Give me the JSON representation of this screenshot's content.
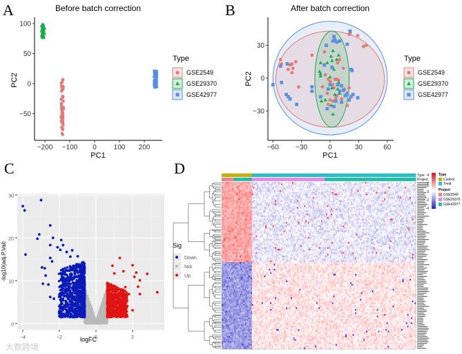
{
  "watermark": "大数跨境",
  "chart_data": [
    {
      "panel": "A",
      "type": "scatter",
      "title": "Before batch correction",
      "xlabel": "PC1",
      "ylabel": "PC2",
      "xlim": [
        -240,
        270
      ],
      "ylim": [
        -90,
        110
      ],
      "xticks": [
        "-200",
        "-100",
        "0",
        "100",
        "200"
      ],
      "yticks": [
        "100",
        "50",
        "0",
        "-50"
      ],
      "legend": {
        "title": "Type",
        "position": "right",
        "entries": [
          "GSE2549",
          "GSE29370",
          "GSE42977"
        ]
      },
      "colors": [
        "#e07b78",
        "#1aaa48",
        "#5b8fe0"
      ],
      "clusters": [
        {
          "series": "GSE2549",
          "x_range": [
            -135,
            -125
          ],
          "y_range": [
            -85,
            7
          ],
          "n": 60
        },
        {
          "series": "GSE29370",
          "x_range": [
            -215,
            -200
          ],
          "y_range": [
            76,
            99
          ],
          "n": 40
        },
        {
          "series": "GSE42977",
          "x_range": [
            240,
            250
          ],
          "y_range": [
            -6,
            21
          ],
          "n": 60
        }
      ]
    },
    {
      "panel": "B",
      "type": "scatter",
      "title": "After batch correction",
      "xlabel": "PC1",
      "ylabel": "PC2",
      "xlim": [
        -66,
        66
      ],
      "ylim": [
        -56,
        56
      ],
      "xticks": [
        "-60",
        "-30",
        "0",
        "30",
        "60"
      ],
      "yticks": [
        "30",
        "0",
        "-30"
      ],
      "legend": {
        "title": "Type",
        "position": "right",
        "entries": [
          "GSE2549",
          "GSE29370",
          "GSE42977"
        ]
      },
      "colors": [
        "#e07b78",
        "#1aaa48",
        "#5b8fe0"
      ],
      "ellipses": [
        {
          "series": "GSE42977",
          "cx": 0,
          "cy": 0,
          "rx": 60,
          "ry": 52
        },
        {
          "series": "GSE2549",
          "cx": 0,
          "cy": -1,
          "rx": 57,
          "ry": 44
        },
        {
          "series": "GSE29370",
          "cx": 2,
          "cy": -1,
          "rx": 18,
          "ry": 44
        }
      ],
      "points": {
        "GSE2549": [
          [
            -52,
            17
          ],
          [
            -51,
            13
          ],
          [
            -42,
            12
          ],
          [
            -40,
            13
          ],
          [
            -36,
            15
          ],
          [
            -44,
            8
          ],
          [
            -39,
            9
          ],
          [
            -40,
            5
          ],
          [
            -33,
            -8
          ],
          [
            -19,
            21
          ],
          [
            -6,
            24
          ],
          [
            -5,
            3
          ],
          [
            -2,
            -1
          ],
          [
            -8,
            -8
          ],
          [
            0,
            -3
          ],
          [
            3,
            -6
          ],
          [
            4,
            -9
          ],
          [
            5,
            -1
          ],
          [
            7,
            -1
          ],
          [
            9,
            -2
          ],
          [
            10,
            17
          ],
          [
            8,
            14
          ],
          [
            -3,
            -14
          ],
          [
            0,
            -20
          ],
          [
            3,
            -21
          ],
          [
            6,
            -18
          ],
          [
            7,
            -16
          ],
          [
            12,
            -19
          ],
          [
            15,
            -10
          ],
          [
            18,
            -25
          ],
          [
            20,
            40
          ],
          [
            21,
            41
          ],
          [
            29,
            39
          ],
          [
            35,
            29
          ],
          [
            38,
            30
          ],
          [
            -2,
            -24
          ],
          [
            14,
            9
          ],
          [
            20,
            -9
          ]
        ],
        "GSE29370": [
          [
            -10,
            14
          ],
          [
            -11,
            6
          ],
          [
            -10,
            4
          ],
          [
            -10,
            2
          ],
          [
            -3,
            14
          ],
          [
            1,
            20
          ],
          [
            2,
            16
          ],
          [
            3,
            25
          ],
          [
            7,
            17
          ],
          [
            9,
            21
          ],
          [
            4,
            8
          ],
          [
            0,
            1
          ],
          [
            2,
            -9
          ],
          [
            5,
            -15
          ],
          [
            9,
            -4
          ],
          [
            8,
            -10
          ],
          [
            10,
            -14
          ],
          [
            -9,
            -21
          ],
          [
            -5,
            -20
          ],
          [
            1,
            -25
          ],
          [
            3,
            -33
          ]
        ],
        "GSE42977": [
          [
            -60,
            -6
          ],
          [
            -52,
            11
          ],
          [
            -51,
            -4
          ],
          [
            -45,
            13
          ],
          [
            -46,
            -15
          ],
          [
            -44,
            -17
          ],
          [
            -42,
            -19
          ],
          [
            -35,
            -24
          ],
          [
            -19,
            -8
          ],
          [
            -19,
            -12
          ],
          [
            -10,
            -17
          ],
          [
            -6,
            12
          ],
          [
            -4,
            30
          ],
          [
            -3,
            -28
          ],
          [
            2,
            10
          ],
          [
            3,
            34
          ],
          [
            4,
            38
          ],
          [
            5,
            35
          ],
          [
            7,
            33
          ],
          [
            10,
            34
          ],
          [
            18,
            31
          ],
          [
            21,
            43
          ],
          [
            22,
            8
          ],
          [
            23,
            7
          ],
          [
            4,
            -26
          ],
          [
            6,
            -21
          ],
          [
            8,
            -6
          ],
          [
            10,
            -12
          ],
          [
            12,
            -7
          ],
          [
            14,
            -11
          ],
          [
            16,
            -16
          ],
          [
            18,
            -14
          ],
          [
            20,
            -20
          ],
          [
            22,
            -17
          ],
          [
            24,
            -15
          ],
          [
            29,
            -18
          ],
          [
            12,
            -22
          ],
          [
            0,
            -6
          ],
          [
            -2,
            -10
          ]
        ]
      }
    },
    {
      "panel": "C",
      "type": "scatter",
      "title": "",
      "xlabel": "logFC",
      "ylabel": "-log10(adj.P.Val)",
      "xlim": [
        -4.2,
        3.7
      ],
      "ylim": [
        -0.3,
        30.8
      ],
      "xticks": [
        "-4",
        "-2",
        "0",
        "2"
      ],
      "yticks": [
        "30",
        "20",
        "10",
        "0"
      ],
      "legend": {
        "title": "Sig",
        "position": "right",
        "entries": [
          "Down",
          "Not",
          "Up"
        ]
      },
      "colors": [
        "#0b1bb8",
        "#b9b9b9",
        "#e01414"
      ],
      "outliers": {
        "Down": [
          [
            -4.0,
            27.4
          ],
          [
            -3.9,
            26.4
          ],
          [
            -3.0,
            28.8
          ],
          [
            -3.85,
            16.1
          ],
          [
            -3.1,
            20.8
          ],
          [
            -3.2,
            19.8
          ],
          [
            -2.5,
            22.9
          ],
          [
            -2.35,
            20.0
          ],
          [
            -2.5,
            18.3
          ],
          [
            -2.1,
            17.8
          ],
          [
            -1.9,
            19.5
          ],
          [
            -1.8,
            18.3
          ],
          [
            -1.95,
            17.2
          ],
          [
            -1.6,
            16.7
          ],
          [
            -1.3,
            17.1
          ],
          [
            -1.4,
            15.6
          ],
          [
            -1.0,
            15.7
          ],
          [
            -2.95,
            13.1
          ],
          [
            -2.8,
            12.9
          ],
          [
            -2.75,
            11.2
          ],
          [
            -2.9,
            9.3
          ],
          [
            -2.6,
            9.1
          ],
          [
            -2.5,
            15.3
          ],
          [
            -2.4,
            14.5
          ],
          [
            -2.5,
            6.2
          ],
          [
            -2.3,
            5.8
          ],
          [
            -2.0,
            4.0
          ],
          [
            -1.9,
            2.7
          ]
        ],
        "Up": [
          [
            1.3,
            15.3
          ],
          [
            2.0,
            13.6
          ],
          [
            0.9,
            13.5
          ],
          [
            1.5,
            12.2
          ],
          [
            2.2,
            11.9
          ],
          [
            2.8,
            11.6
          ],
          [
            2.1,
            10.9
          ],
          [
            2.4,
            10.1
          ],
          [
            2.3,
            8.6
          ],
          [
            3.35,
            7.3
          ],
          [
            2.4,
            6.9
          ],
          [
            1.6,
            8.5
          ],
          [
            1.8,
            6.9
          ],
          [
            2.0,
            3.1
          ],
          [
            1.0,
            11.7
          ]
        ]
      },
      "clouds": [
        {
          "series": "Down",
          "x_range": [
            -2.0,
            -0.6
          ],
          "y_range": [
            1.4,
            13.0
          ],
          "n": 900
        },
        {
          "series": "Up",
          "x_range": [
            0.6,
            1.7
          ],
          "y_range": [
            1.4,
            9.5
          ],
          "n": 650
        },
        {
          "series": "Not",
          "x_range": [
            -0.6,
            0.6
          ],
          "y_range": [
            0,
            8.5
          ],
          "n": 1200
        }
      ]
    },
    {
      "panel": "D",
      "type": "heatmap",
      "title": "",
      "annotations": [
        {
          "name": "Type",
          "entries": [
            {
              "label": "Control",
              "color": "#c8b100"
            },
            {
              "label": "Treat",
              "color": "#27c0c8"
            }
          ]
        },
        {
          "name": "Project",
          "entries": [
            {
              "label": "GSE2549",
              "color": "#f08080"
            },
            {
              "label": "GSE29370",
              "color": "#e08ce8"
            },
            {
              "label": "GSE42977",
              "color": "#20c0a8"
            }
          ]
        }
      ],
      "scale": {
        "ticks": [
          "4",
          "2",
          "0",
          "-2",
          "-4"
        ],
        "range": [
          -4,
          4
        ],
        "colors": [
          "#2020c0",
          "#ffffff",
          "#d81818"
        ]
      },
      "rows": 100,
      "columns": 160,
      "column_groups": {
        "Control": 25,
        "Treat": 135
      },
      "row_clusters": {
        "up_in_control": 48,
        "down_in_control": 52
      }
    }
  ]
}
